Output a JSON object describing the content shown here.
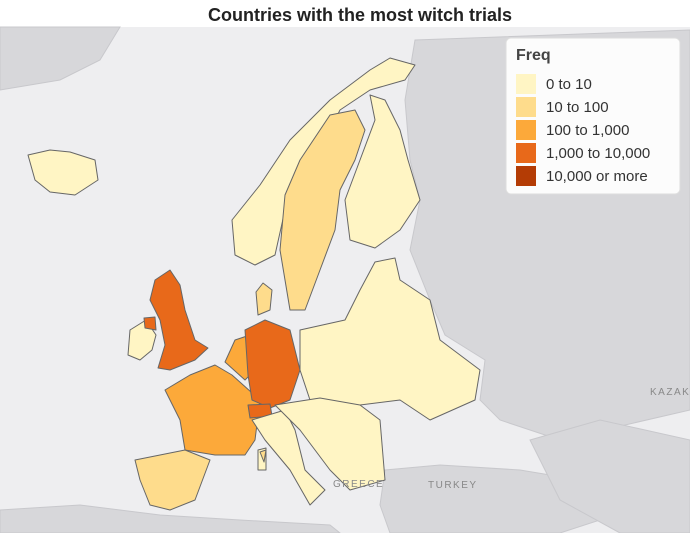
{
  "header": {
    "title": "Countries with the most witch trials"
  },
  "legend": {
    "title": "Freq",
    "items": [
      {
        "label": "0 to 10",
        "color": "#fff5c4"
      },
      {
        "label": "10 to 100",
        "color": "#fedc8c"
      },
      {
        "label": "100 to 1,000",
        "color": "#fca93a"
      },
      {
        "label": "1,000 to 10,000",
        "color": "#e8691a"
      },
      {
        "label": "10,000 or more",
        "color": "#b43c05"
      }
    ]
  },
  "basemap_labels": [
    "TURKEY",
    "KAZAK",
    "GREECE"
  ]
}
